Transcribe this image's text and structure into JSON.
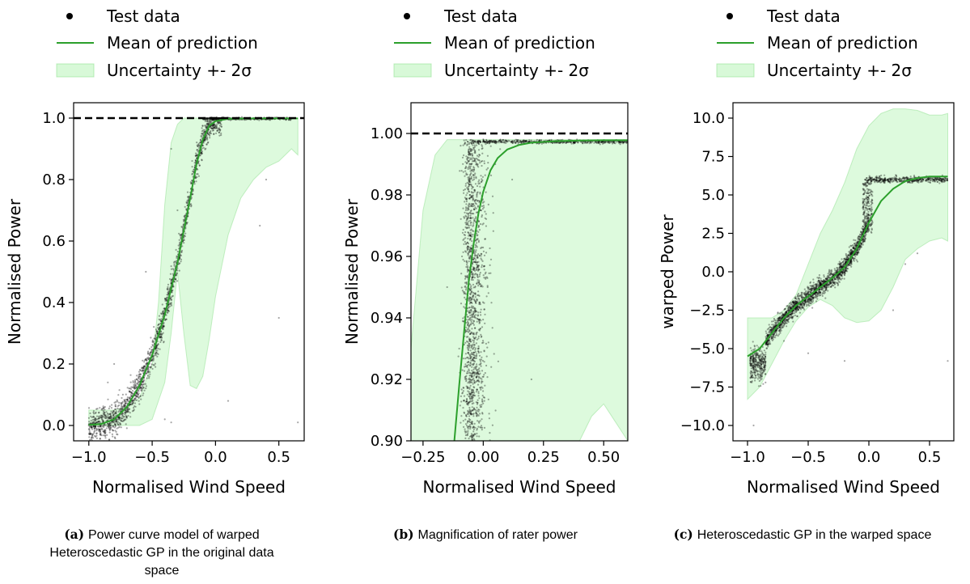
{
  "colors": {
    "mean": "#2ca02c",
    "band": "#90ee90",
    "band_edge": "#8fe08f",
    "points": "#000000",
    "rated": "#000000"
  },
  "legend": {
    "test": "Test data",
    "mean": "Mean of prediction",
    "band": "Uncertainty +- 2σ"
  },
  "chart_data": [
    {
      "id": "a",
      "type": "scatter",
      "xlabel": "Normalised Wind Speed",
      "ylabel": "Normalised Power",
      "xlim": [
        -1.12,
        0.7
      ],
      "ylim": [
        -0.05,
        1.05
      ],
      "xticks": [
        -1.0,
        -0.5,
        0.0,
        0.5
      ],
      "xtick_labels": [
        "−1.0",
        "−0.5",
        "0.0",
        "0.5"
      ],
      "yticks": [
        0.0,
        0.2,
        0.4,
        0.6,
        0.8,
        1.0
      ],
      "ytick_labels": [
        "0.0",
        "0.2",
        "0.4",
        "0.6",
        "0.8",
        "1.0"
      ],
      "rated_line": 1.0,
      "series": [
        {
          "name": "Mean of prediction",
          "x": [
            -1.0,
            -0.9,
            -0.8,
            -0.7,
            -0.6,
            -0.5,
            -0.4,
            -0.3,
            -0.2,
            -0.15,
            -0.1,
            -0.05,
            0.0,
            0.1,
            0.3,
            0.5,
            0.65
          ],
          "y": [
            0.002,
            0.005,
            0.02,
            0.06,
            0.13,
            0.23,
            0.36,
            0.53,
            0.74,
            0.85,
            0.93,
            0.975,
            0.99,
            0.998,
            0.999,
            0.999,
            0.999
          ]
        },
        {
          "name": "Uncertainty +- 2σ",
          "x": [
            -1.0,
            -0.9,
            -0.8,
            -0.7,
            -0.6,
            -0.5,
            -0.45,
            -0.4,
            -0.35,
            -0.3,
            -0.25,
            -0.2,
            -0.15,
            -0.1,
            -0.05,
            0.0,
            0.1,
            0.2,
            0.3,
            0.4,
            0.5,
            0.55,
            0.6,
            0.65
          ],
          "upper": [
            0.05,
            0.05,
            0.05,
            0.06,
            0.09,
            0.2,
            0.4,
            0.72,
            0.92,
            0.98,
            1.0,
            1.0,
            1.0,
            1.0,
            1.0,
            1.0,
            1.0,
            1.0,
            1.0,
            1.0,
            1.0,
            1.0,
            1.0,
            1.0
          ],
          "lower": [
            0.0,
            0.0,
            0.0,
            0.0,
            0.0,
            0.02,
            0.08,
            0.14,
            0.3,
            0.5,
            0.3,
            0.13,
            0.12,
            0.16,
            0.28,
            0.42,
            0.62,
            0.74,
            0.8,
            0.84,
            0.86,
            0.88,
            0.9,
            0.88
          ]
        },
        {
          "name": "Test data",
          "note": "dense scatter along mean curve, saturating at 1.0"
        }
      ]
    },
    {
      "id": "b",
      "type": "scatter",
      "xlabel": "Normalised Wind Speed",
      "ylabel": "Normalised Power",
      "xlim": [
        -0.3,
        0.6
      ],
      "ylim": [
        0.9,
        1.01
      ],
      "xticks": [
        -0.25,
        0.0,
        0.25,
        0.5
      ],
      "xtick_labels": [
        "−0.25",
        "0.00",
        "0.25",
        "0.50"
      ],
      "yticks": [
        0.9,
        0.92,
        0.94,
        0.96,
        0.98,
        1.0
      ],
      "ytick_labels": [
        "0.90",
        "0.92",
        "0.94",
        "0.96",
        "0.98",
        "1.00"
      ],
      "rated_line": 1.0,
      "series": [
        {
          "name": "Mean of prediction",
          "x": [
            -0.12,
            -0.1,
            -0.08,
            -0.06,
            -0.04,
            -0.02,
            0.0,
            0.03,
            0.06,
            0.1,
            0.15,
            0.2,
            0.3,
            0.4,
            0.5,
            0.6
          ],
          "y": [
            0.9,
            0.918,
            0.935,
            0.952,
            0.964,
            0.974,
            0.981,
            0.988,
            0.992,
            0.9948,
            0.9963,
            0.997,
            0.9975,
            0.9977,
            0.9978,
            0.9978
          ]
        },
        {
          "name": "Uncertainty +- 2σ",
          "x": [
            -0.3,
            -0.25,
            -0.2,
            -0.15,
            -0.1,
            -0.05,
            0.0,
            0.1,
            0.2,
            0.3,
            0.4,
            0.45,
            0.5,
            0.55,
            0.6
          ],
          "upper": [
            0.93,
            0.975,
            0.993,
            0.998,
            0.998,
            0.998,
            0.998,
            0.998,
            0.998,
            0.998,
            0.998,
            0.998,
            0.998,
            0.998,
            0.998
          ],
          "lower": [
            0.9,
            0.9,
            0.9,
            0.9,
            0.9,
            0.9,
            0.9,
            0.9,
            0.9,
            0.9,
            0.9,
            0.908,
            0.912,
            0.906,
            0.9
          ]
        },
        {
          "name": "Test data",
          "note": "vertical scatter near x=0, rated band at ~0.997"
        }
      ]
    },
    {
      "id": "c",
      "type": "scatter",
      "xlabel": "Normalised Wind Speed",
      "ylabel": "warped Power",
      "xlim": [
        -1.12,
        0.7
      ],
      "ylim": [
        -11.0,
        11.0
      ],
      "xticks": [
        -1.0,
        -0.5,
        0.0,
        0.5
      ],
      "xtick_labels": [
        "−1.0",
        "−0.5",
        "0.0",
        "0.5"
      ],
      "yticks": [
        -10.0,
        -7.5,
        -5.0,
        -2.5,
        0.0,
        2.5,
        5.0,
        7.5,
        10.0
      ],
      "ytick_labels": [
        "−10.0",
        "−7.5",
        "−5.0",
        "−2.5",
        "0.0",
        "2.5",
        "5.0",
        "7.5",
        "10.0"
      ],
      "series": [
        {
          "name": "Mean of prediction",
          "x": [
            -1.0,
            -0.9,
            -0.8,
            -0.7,
            -0.6,
            -0.5,
            -0.4,
            -0.3,
            -0.2,
            -0.1,
            0.0,
            0.1,
            0.2,
            0.3,
            0.4,
            0.5,
            0.65
          ],
          "y": [
            -5.5,
            -5.0,
            -4.0,
            -3.0,
            -2.2,
            -1.6,
            -1.0,
            -0.4,
            0.3,
            1.5,
            3.2,
            4.6,
            5.4,
            5.9,
            6.1,
            6.2,
            6.2
          ]
        },
        {
          "name": "Uncertainty +- 2σ",
          "x": [
            -1.0,
            -0.9,
            -0.8,
            -0.7,
            -0.6,
            -0.5,
            -0.4,
            -0.3,
            -0.2,
            -0.1,
            0.0,
            0.1,
            0.2,
            0.3,
            0.4,
            0.5,
            0.6,
            0.65
          ],
          "upper": [
            -3.0,
            -3.0,
            -3.0,
            -2.5,
            -1.5,
            0.5,
            2.5,
            4.0,
            5.8,
            8.0,
            9.5,
            10.3,
            10.6,
            10.6,
            10.5,
            10.2,
            10.2,
            10.3
          ],
          "lower": [
            -8.3,
            -7.5,
            -6.0,
            -4.5,
            -3.2,
            -2.3,
            -1.8,
            -2.2,
            -3.0,
            -3.3,
            -3.2,
            -2.5,
            -1.0,
            0.8,
            1.5,
            2.0,
            2.2,
            2.0
          ]
        },
        {
          "name": "Test data",
          "note": "dense band along mean, plateau at ~6.0 for x>0"
        }
      ]
    }
  ],
  "captions": [
    {
      "label": "(a)",
      "text": "Power curve model of warped Heteroscedastic GP in the original data space",
      "lines": [
        "Power curve model of warped",
        "Heteroscedastic GP in the original data",
        "space"
      ]
    },
    {
      "label": "(b)",
      "text": "Magnification of rater power"
    },
    {
      "label": "(c)",
      "text": "Heteroscedastic GP in the warped space"
    }
  ]
}
